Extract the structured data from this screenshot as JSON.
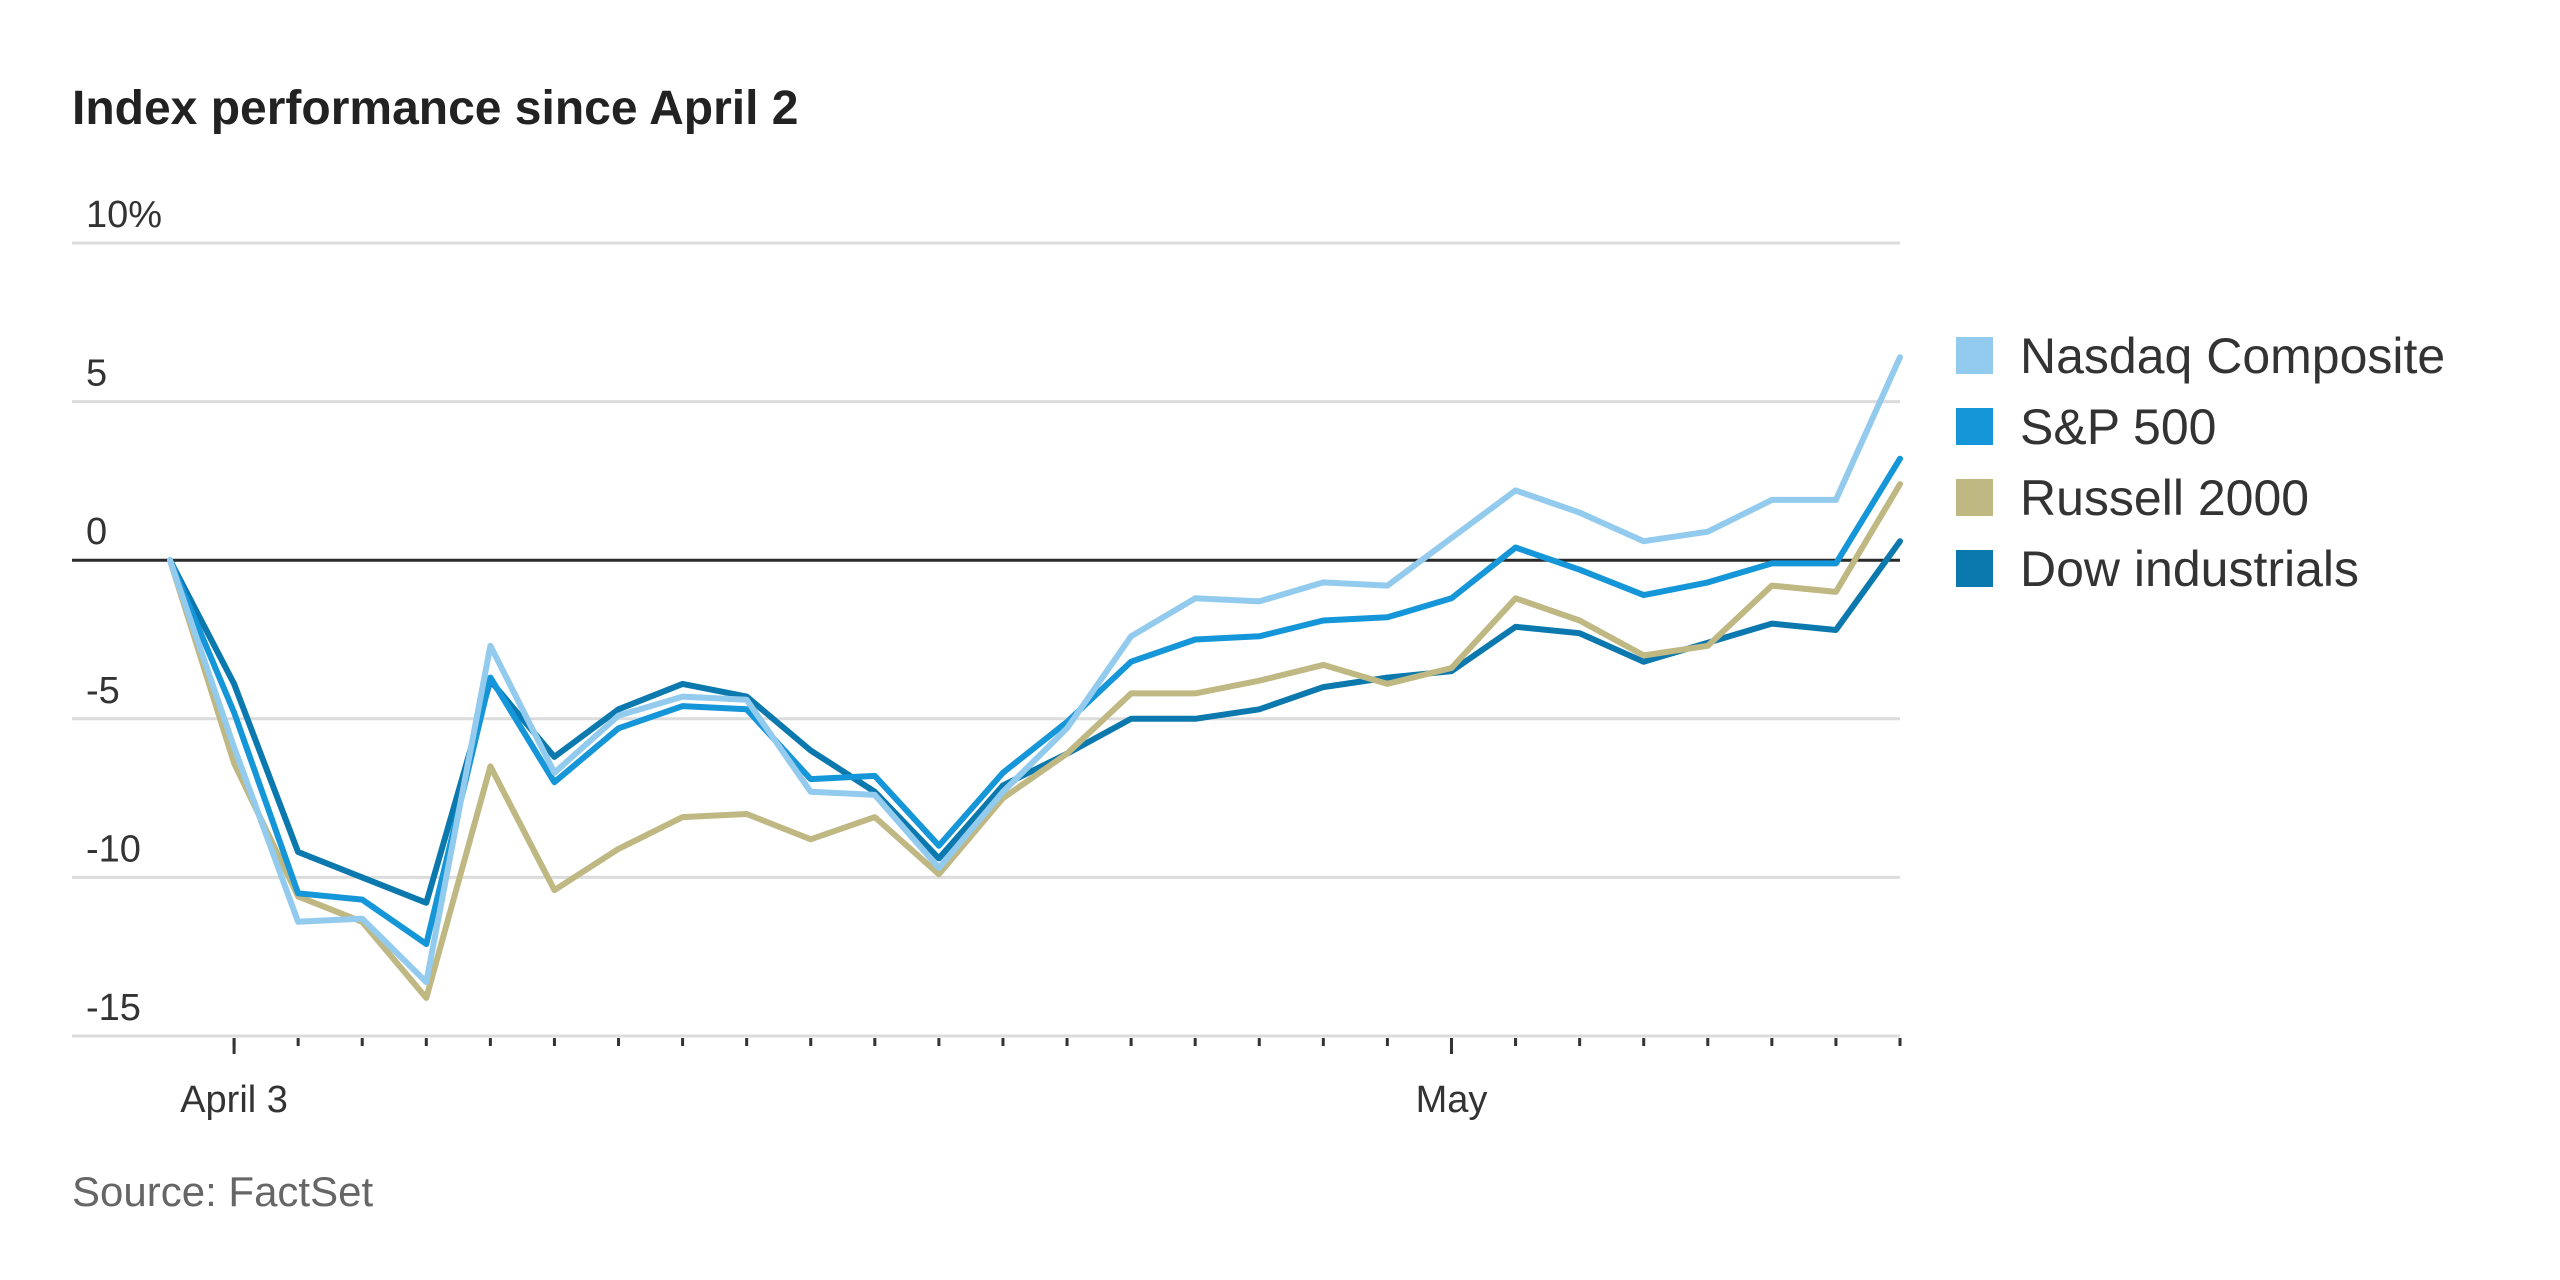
{
  "chart_data": {
    "type": "line",
    "title": "Index performance since April 2",
    "source": "Source: FactSet",
    "y_unit": "%",
    "ylim": [
      -15,
      10
    ],
    "yticks": [
      10,
      5,
      0,
      -5,
      -10,
      -15
    ],
    "ytick_labels": [
      "10%",
      "5",
      "0",
      "-5",
      "-10",
      "-15"
    ],
    "x_labels": [
      {
        "index": 1,
        "label": "April 3"
      },
      {
        "index": 20,
        "label": "May"
      }
    ],
    "num_points": 28,
    "grid": true,
    "legend_position": "right",
    "series": [
      {
        "name": "Nasdaq Composite",
        "color": "#92cbee",
        "values": [
          0,
          -5.9,
          -11.4,
          -11.3,
          -13.3,
          -2.7,
          -6.7,
          -4.9,
          -4.3,
          -4.4,
          -7.3,
          -7.4,
          -9.7,
          -7.3,
          -5.3,
          -2.4,
          -1.2,
          -1.3,
          -0.7,
          -0.8,
          0.7,
          2.2,
          1.5,
          0.6,
          0.9,
          1.9,
          1.9,
          6.4
        ]
      },
      {
        "name": "S&P 500",
        "color": "#1596d9",
        "values": [
          0,
          -4.8,
          -10.5,
          -10.7,
          -12.1,
          -3.7,
          -7.0,
          -5.3,
          -4.6,
          -4.7,
          -6.9,
          -6.8,
          -9.0,
          -6.7,
          -5.1,
          -3.2,
          -2.5,
          -2.4,
          -1.9,
          -1.8,
          -1.2,
          0.4,
          -0.3,
          -1.1,
          -0.7,
          -0.1,
          -0.1,
          3.2
        ]
      },
      {
        "name": "Russell 2000",
        "color": "#bfb883",
        "values": [
          0,
          -6.4,
          -10.6,
          -11.4,
          -13.8,
          -6.5,
          -10.4,
          -9.1,
          -8.1,
          -8.0,
          -8.8,
          -8.1,
          -9.9,
          -7.5,
          -6.1,
          -4.2,
          -4.2,
          -3.8,
          -3.3,
          -3.9,
          -3.4,
          -1.2,
          -1.9,
          -3.0,
          -2.7,
          -0.8,
          -1.0,
          2.4
        ]
      },
      {
        "name": "Dow industrials",
        "color": "#0b78ae",
        "values": [
          0,
          -3.9,
          -9.2,
          -10.0,
          -10.8,
          -3.8,
          -6.2,
          -4.7,
          -3.9,
          -4.3,
          -6.0,
          -7.3,
          -9.4,
          -7.1,
          -6.1,
          -5.0,
          -5.0,
          -4.7,
          -4.0,
          -3.7,
          -3.5,
          -2.1,
          -2.3,
          -3.2,
          -2.6,
          -2.0,
          -2.2,
          0.6
        ]
      }
    ]
  }
}
